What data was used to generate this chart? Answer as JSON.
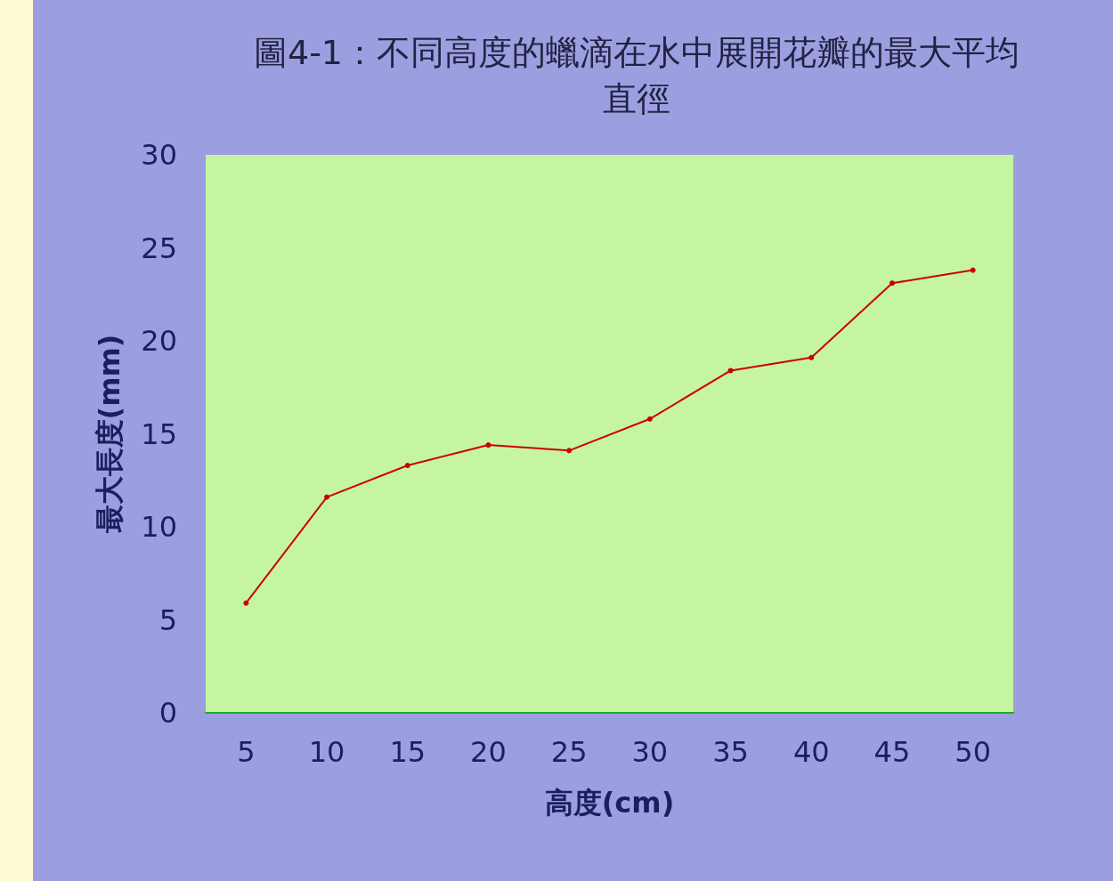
{
  "chart_data": {
    "type": "line",
    "title": "圖4-1：不同高度的蠟滴在水中展開花瓣的最大平均直徑",
    "xlabel": "高度(cm)",
    "ylabel": "最大長度(mm)",
    "categories": [
      "5",
      "10",
      "15",
      "20",
      "25",
      "30",
      "35",
      "40",
      "45",
      "50"
    ],
    "series": [
      {
        "color": "#cc0000",
        "values": [
          5.9,
          11.6,
          13.3,
          14.4,
          14.1,
          15.8,
          18.4,
          19.1,
          23.1,
          23.8
        ]
      }
    ],
    "ylim": [
      0,
      30
    ],
    "yticks": [
      0,
      5,
      10,
      15,
      20,
      25,
      30
    ],
    "grid": false,
    "marker": "circle",
    "line_style": "solid"
  }
}
